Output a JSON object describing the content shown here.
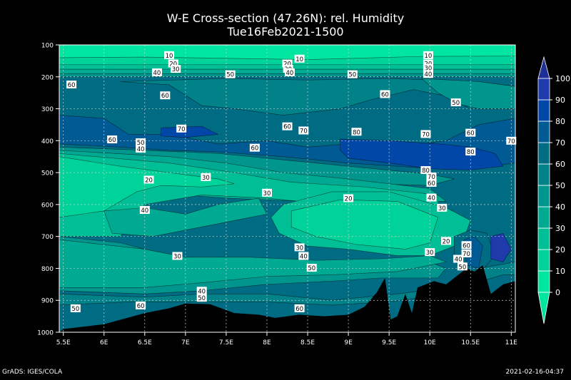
{
  "chart_data": {
    "type": "contour",
    "title": "W-E Cross-section (47.26N): rel. Humidity",
    "subtitle": "Tue16Feb2021-1500",
    "xlabel": "",
    "ylabel": "",
    "x_ticks": [
      "5.5E",
      "6E",
      "6.5E",
      "7E",
      "7.5E",
      "8E",
      "8.5E",
      "9E",
      "9.5E",
      "10E",
      "10.5E",
      "11E"
    ],
    "x_values": [
      5.5,
      6,
      6.5,
      7,
      7.5,
      8,
      8.5,
      9,
      9.5,
      10,
      10.5,
      11
    ],
    "xlim": [
      5.45,
      11.05
    ],
    "y_ticks": [
      100,
      200,
      300,
      400,
      500,
      600,
      700,
      800,
      900,
      1000
    ],
    "ylim": [
      100,
      1000
    ],
    "y_reversed": true,
    "grid": true,
    "colorbar": {
      "levels": [
        0,
        10,
        20,
        30,
        40,
        50,
        60,
        70,
        80,
        90,
        100
      ],
      "colors": [
        "#00e6a0",
        "#00d39a",
        "#00bf96",
        "#00aa92",
        "#00968e",
        "#008288",
        "#006c84",
        "#005a94",
        "#0047a8",
        "#1f3aaa",
        "#1e2f96"
      ],
      "under_color": "#00e6a0",
      "over_color": "#1e2f96"
    },
    "contour_labels": [
      {
        "x": 6.8,
        "p": 132,
        "v": "10"
      },
      {
        "x": 8.4,
        "p": 143,
        "v": "10"
      },
      {
        "x": 9.98,
        "p": 132,
        "v": "10"
      },
      {
        "x": 6.85,
        "p": 158,
        "v": "20"
      },
      {
        "x": 8.25,
        "p": 158,
        "v": "20"
      },
      {
        "x": 9.98,
        "p": 158,
        "v": "20"
      },
      {
        "x": 6.88,
        "p": 175,
        "v": "30"
      },
      {
        "x": 8.26,
        "p": 175,
        "v": "30"
      },
      {
        "x": 9.98,
        "p": 172,
        "v": "30"
      },
      {
        "x": 6.65,
        "p": 186,
        "v": "40"
      },
      {
        "x": 8.28,
        "p": 186,
        "v": "40"
      },
      {
        "x": 9.98,
        "p": 191,
        "v": "40"
      },
      {
        "x": 7.55,
        "p": 192,
        "v": "50"
      },
      {
        "x": 9.05,
        "p": 192,
        "v": "50"
      },
      {
        "x": 10.32,
        "p": 280,
        "v": "50"
      },
      {
        "x": 5.6,
        "p": 224,
        "v": "60"
      },
      {
        "x": 6.75,
        "p": 258,
        "v": "60"
      },
      {
        "x": 9.45,
        "p": 254,
        "v": "60"
      },
      {
        "x": 6.1,
        "p": 396,
        "v": "60"
      },
      {
        "x": 7.85,
        "p": 422,
        "v": "60"
      },
      {
        "x": 8.25,
        "p": 355,
        "v": "60"
      },
      {
        "x": 10.5,
        "p": 375,
        "v": "60"
      },
      {
        "x": 6.95,
        "p": 362,
        "v": "70"
      },
      {
        "x": 8.45,
        "p": 368,
        "v": "70"
      },
      {
        "x": 9.95,
        "p": 379,
        "v": "70"
      },
      {
        "x": 11.0,
        "p": 400,
        "v": "70"
      },
      {
        "x": 9.1,
        "p": 372,
        "v": "80"
      },
      {
        "x": 10.5,
        "p": 434,
        "v": "80"
      },
      {
        "x": 9.95,
        "p": 492,
        "v": "80"
      },
      {
        "x": 6.45,
        "p": 405,
        "v": "50"
      },
      {
        "x": 6.45,
        "p": 425,
        "v": "40"
      },
      {
        "x": 6.55,
        "p": 522,
        "v": "20"
      },
      {
        "x": 7.25,
        "p": 514,
        "v": "30"
      },
      {
        "x": 10.02,
        "p": 512,
        "v": "70"
      },
      {
        "x": 10.02,
        "p": 532,
        "v": "60"
      },
      {
        "x": 8.0,
        "p": 563,
        "v": "30"
      },
      {
        "x": 9.0,
        "p": 580,
        "v": "20"
      },
      {
        "x": 10.02,
        "p": 578,
        "v": "40"
      },
      {
        "x": 10.15,
        "p": 610,
        "v": "30"
      },
      {
        "x": 6.5,
        "p": 617,
        "v": "40"
      },
      {
        "x": 10.2,
        "p": 714,
        "v": "20"
      },
      {
        "x": 8.4,
        "p": 734,
        "v": "30"
      },
      {
        "x": 8.45,
        "p": 761,
        "v": "40"
      },
      {
        "x": 10.0,
        "p": 749,
        "v": "30"
      },
      {
        "x": 10.45,
        "p": 727,
        "v": "60"
      },
      {
        "x": 10.45,
        "p": 753,
        "v": "70"
      },
      {
        "x": 10.35,
        "p": 770,
        "v": "40"
      },
      {
        "x": 10.4,
        "p": 794,
        "v": "50"
      },
      {
        "x": 8.55,
        "p": 798,
        "v": "50"
      },
      {
        "x": 6.9,
        "p": 761,
        "v": "30"
      },
      {
        "x": 7.2,
        "p": 870,
        "v": "40"
      },
      {
        "x": 7.2,
        "p": 892,
        "v": "50"
      },
      {
        "x": 5.65,
        "p": 925,
        "v": "50"
      },
      {
        "x": 6.45,
        "p": 916,
        "v": "60"
      },
      {
        "x": 8.4,
        "p": 925,
        "v": "60"
      }
    ]
  },
  "footer": {
    "left": "GrADS: IGES/COLA",
    "right": "2021-02-16-04:37"
  }
}
